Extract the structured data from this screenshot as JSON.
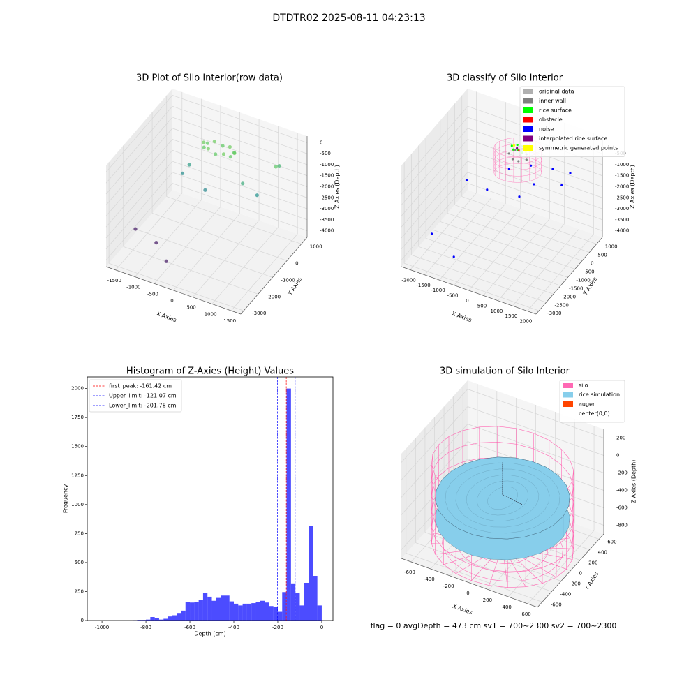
{
  "title": "DTDTR02 2025-08-11 04:23:13",
  "footer": "flag = 0     avgDepth = 473 cm  sv1 = 700~2300  sv2 = 700~2300",
  "chart_data": [
    {
      "type": "scatter3d",
      "title": "3D Plot of Silo Interior(row data)",
      "xlabel": "X Axies",
      "ylabel": "Y Axies",
      "zlabel": "Z Axies (Depth)",
      "xlim": [
        -1750,
        1750
      ],
      "ylim": [
        -3200,
        1400
      ],
      "zlim": [
        -4300,
        300
      ],
      "xticks": [
        -1500,
        -1000,
        -500,
        0,
        500,
        1000,
        1500
      ],
      "yticks": [
        -3000,
        -2000,
        -1000,
        0,
        1000
      ],
      "zticks": [
        0,
        -500,
        -1000,
        -1500,
        -2000,
        -2500,
        -3000,
        -3500,
        -4000
      ],
      "colormap": "viridis",
      "x": [
        200,
        146,
        0,
        -200,
        -400,
        -546,
        -600,
        -546,
        -400,
        -200,
        0,
        146,
        600,
        900,
        1200,
        1100,
        -900,
        -1000,
        -300,
        -1700,
        -1050,
        -530
      ],
      "y": [
        500,
        625,
        717,
        750,
        717,
        625,
        500,
        375,
        283,
        250,
        283,
        375,
        0,
        200,
        700,
        1200,
        300,
        100,
        -200,
        -1300,
        -1590,
        -2280
      ],
      "z": [
        -750,
        -850,
        -750,
        -850,
        -750,
        -850,
        -750,
        -850,
        -750,
        -850,
        -750,
        -850,
        -1500,
        -2000,
        -900,
        -1300,
        -1800,
        -2100,
        -2200,
        -4000,
        -4000,
        -4000
      ]
    },
    {
      "type": "scatter3d",
      "title": "3D classify of Silo Interior",
      "xlabel": "X Axies",
      "ylabel": "Y Axies",
      "zlabel": "Z Axies (Depth)",
      "xlim": [
        -2300,
        2300
      ],
      "ylim": [
        -3200,
        1400
      ],
      "zlim": [
        -4300,
        300
      ],
      "xticks": [
        -2000,
        -1500,
        -1000,
        -500,
        0,
        500,
        1000,
        1500,
        2000
      ],
      "yticks": [
        -3000,
        -2500,
        -2000,
        -1500,
        -1000,
        -500,
        0,
        500,
        1000
      ],
      "zticks": [
        -500,
        -1000,
        -1500,
        -2000,
        -2500,
        -3000,
        -3500,
        -4000
      ],
      "legend": "upper right",
      "series": [
        {
          "name": "original data",
          "color": "#b0b0b0",
          "x": [
            -100,
            100
          ],
          "y": [
            300,
            200
          ],
          "z": [
            -600,
            -700
          ]
        },
        {
          "name": "inner wall",
          "color": "#808080",
          "x": [
            -300,
            -200,
            0,
            200,
            300,
            100,
            -100
          ],
          "y": [
            200,
            400,
            450,
            400,
            200,
            50,
            50
          ],
          "z": [
            -800,
            -750,
            -700,
            -750,
            -800,
            -850,
            -850
          ]
        },
        {
          "name": "rice surface",
          "color": "#00ff00",
          "x": [
            -250,
            -100,
            50,
            200,
            -150,
            0,
            150
          ],
          "y": [
            300,
            380,
            380,
            300,
            200,
            220,
            200
          ],
          "z": [
            -500,
            -450,
            -450,
            -500,
            -550,
            -520,
            -550
          ]
        },
        {
          "name": "obstacle",
          "color": "#ff0000",
          "x": [
            0
          ],
          "y": [
            300
          ],
          "z": [
            -600
          ]
        },
        {
          "name": "noise",
          "color": "#0000ff",
          "x": [
            500,
            1000,
            1400,
            -1400,
            -800,
            300,
            -2100,
            -1000,
            0,
            700,
            1600
          ],
          "y": [
            100,
            600,
            1000,
            -500,
            -300,
            -300,
            -1500,
            -2200,
            -400,
            -100,
            0
          ],
          "z": [
            -900,
            -1200,
            -1500,
            -2000,
            -2300,
            -2100,
            -4000,
            -4000,
            -900,
            -1500,
            -1200
          ]
        },
        {
          "name": "interpolated rice surface",
          "color": "#800080",
          "x": [
            -50,
            100
          ],
          "y": [
            250,
            300
          ],
          "z": [
            -480,
            -480
          ]
        },
        {
          "name": "symmetric generated points",
          "color": "#ffff00",
          "x": [
            -200,
            250
          ],
          "y": [
            350,
            250
          ],
          "z": [
            -500,
            -500
          ]
        }
      ]
    },
    {
      "type": "histogram",
      "title": "Histogram of Z-Axies (Height) Values",
      "xlabel": "Depth (cm)",
      "ylabel": "Frequency",
      "xlim": [
        -1067,
        51
      ],
      "ylim": [
        0,
        2100
      ],
      "xticks": [
        -1000,
        -800,
        -600,
        -400,
        -200,
        0
      ],
      "yticks": [
        0,
        250,
        500,
        750,
        1000,
        1250,
        1500,
        1750,
        2000
      ],
      "color": "#0000ff",
      "bins": [
        -860,
        -840,
        -820,
        -800,
        -780,
        -760,
        -740,
        -720,
        -700,
        -680,
        -660,
        -640,
        -620,
        -600,
        -580,
        -560,
        -540,
        -520,
        -500,
        -480,
        -460,
        -440,
        -420,
        -400,
        -380,
        -360,
        -340,
        -320,
        -300,
        -280,
        -260,
        -240,
        -220,
        -200,
        -180,
        -160,
        -140,
        -120,
        -100,
        -80,
        -60,
        -40,
        -20,
        0
      ],
      "counts": [
        2,
        5,
        5,
        8,
        30,
        20,
        8,
        15,
        35,
        45,
        65,
        85,
        160,
        155,
        160,
        180,
        235,
        205,
        170,
        195,
        215,
        215,
        165,
        145,
        130,
        145,
        145,
        150,
        160,
        170,
        155,
        125,
        115,
        75,
        245,
        2000,
        320,
        235,
        130,
        325,
        815,
        385,
        130
      ],
      "legend": "upper left",
      "lines": [
        {
          "label": "first_peak: -161.42 cm",
          "value": -161.42,
          "color": "#ff0000"
        },
        {
          "label": "Upper_limit: -121.07 cm",
          "value": -121.07,
          "color": "#0000ff"
        },
        {
          "label": "Lower_limit: -201.78 cm",
          "value": -201.78,
          "color": "#0000ff"
        }
      ]
    },
    {
      "type": "surface3d",
      "title": "3D simulation of Silo Interior",
      "xlabel": "X Axies",
      "ylabel": "Y Axies",
      "zlabel": "Z Axies (Depth)",
      "xlim": [
        -700,
        700
      ],
      "ylim": [
        -700,
        700
      ],
      "zlim": [
        -900,
        300
      ],
      "xticks": [
        -600,
        -400,
        -200,
        0,
        200,
        400,
        600
      ],
      "yticks": [
        -600,
        -400,
        -200,
        0,
        200,
        400,
        600
      ],
      "zticks": [
        200,
        0,
        -200,
        -400,
        -600,
        -800
      ],
      "legend": "upper right",
      "series": [
        {
          "name": "silo",
          "color": "#ff69b4"
        },
        {
          "name": "rice simulation",
          "color": "#87ceeb"
        },
        {
          "name": "auger",
          "color": "#ff4500"
        },
        {
          "name": "center(0,0)",
          "color": "#ffffff"
        }
      ]
    }
  ]
}
